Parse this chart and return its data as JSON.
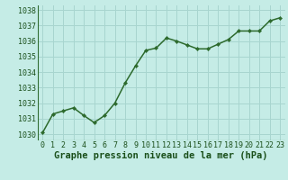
{
  "x": [
    0,
    1,
    2,
    3,
    4,
    5,
    6,
    7,
    8,
    9,
    10,
    11,
    12,
    13,
    14,
    15,
    16,
    17,
    18,
    19,
    20,
    21,
    22,
    23
  ],
  "y": [
    1030.1,
    1031.3,
    1031.5,
    1031.7,
    1031.2,
    1030.75,
    1031.2,
    1032.0,
    1033.3,
    1034.4,
    1035.4,
    1035.55,
    1036.2,
    1036.0,
    1035.75,
    1035.5,
    1035.5,
    1035.8,
    1036.1,
    1036.65,
    1036.65,
    1036.65,
    1037.3,
    1037.5
  ],
  "ylim_min": 1029.6,
  "ylim_max": 1038.3,
  "yticks": [
    1030,
    1031,
    1032,
    1033,
    1034,
    1035,
    1036,
    1037,
    1038
  ],
  "xticks": [
    0,
    1,
    2,
    3,
    4,
    5,
    6,
    7,
    8,
    9,
    10,
    11,
    12,
    13,
    14,
    15,
    16,
    17,
    18,
    19,
    20,
    21,
    22,
    23
  ],
  "line_color": "#2d6a2d",
  "marker": "D",
  "marker_size": 2.2,
  "bg_color": "#c5ece6",
  "grid_color": "#a8d5cf",
  "xlabel": "Graphe pression niveau de la mer (hPa)",
  "xlabel_color": "#1a4f1a",
  "xlabel_fontsize": 7.5,
  "tick_fontsize": 6.0,
  "tick_color": "#1a4f1a",
  "line_width": 1.1,
  "xlim_min": -0.5,
  "xlim_max": 23.5
}
